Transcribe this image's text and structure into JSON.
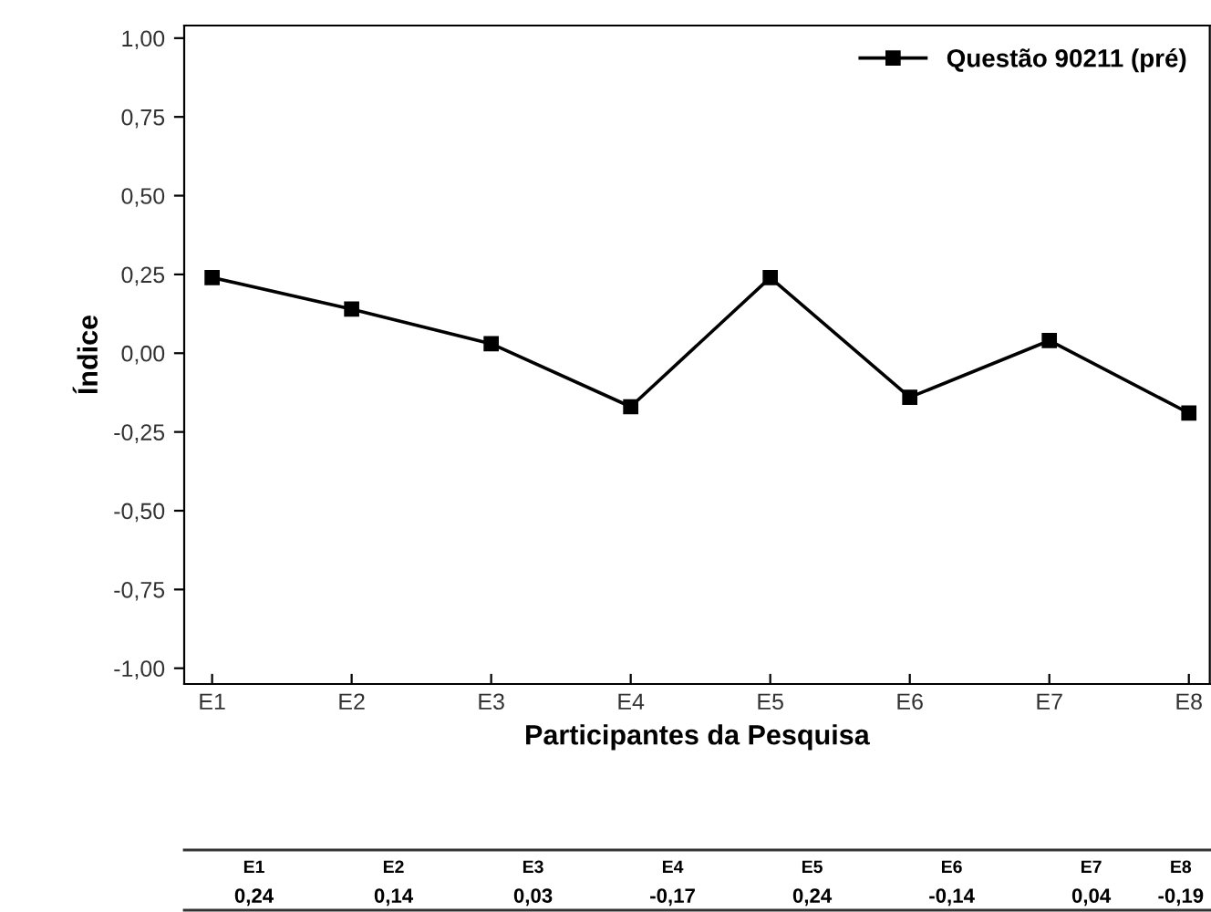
{
  "chart_data": {
    "type": "line",
    "xlabel": "Participantes da Pesquisa",
    "ylabel": "Índice",
    "categories": [
      "E1",
      "E2",
      "E3",
      "E4",
      "E5",
      "E6",
      "E7",
      "E8"
    ],
    "series": [
      {
        "name": "Questão 90211 (pré)",
        "color": "#000000",
        "values": [
          0.24,
          0.14,
          0.03,
          -0.17,
          0.24,
          -0.14,
          0.04,
          -0.19
        ],
        "value_labels": [
          "0,24",
          "0,14",
          "0,03",
          "-0,17",
          "0,24",
          "-0,14",
          "0,04",
          "-0,19"
        ]
      }
    ],
    "ylim": [
      -1.05,
      1.04
    ],
    "yticks": [
      {
        "value": -1,
        "label": "-1,00"
      },
      {
        "value": -0.75,
        "label": "-0,75"
      },
      {
        "value": -0.5,
        "label": "-0,50"
      },
      {
        "value": -0.25,
        "label": "-0,25"
      },
      {
        "value": 0,
        "label": "0,00"
      },
      {
        "value": 0.25,
        "label": "0,25"
      },
      {
        "value": 0.5,
        "label": "0,50"
      },
      {
        "value": 0.75,
        "label": "0,75"
      },
      {
        "value": 1,
        "label": "1,00"
      }
    ],
    "marker": "square",
    "line_style": "solid",
    "grid": false,
    "legend": "top right"
  }
}
